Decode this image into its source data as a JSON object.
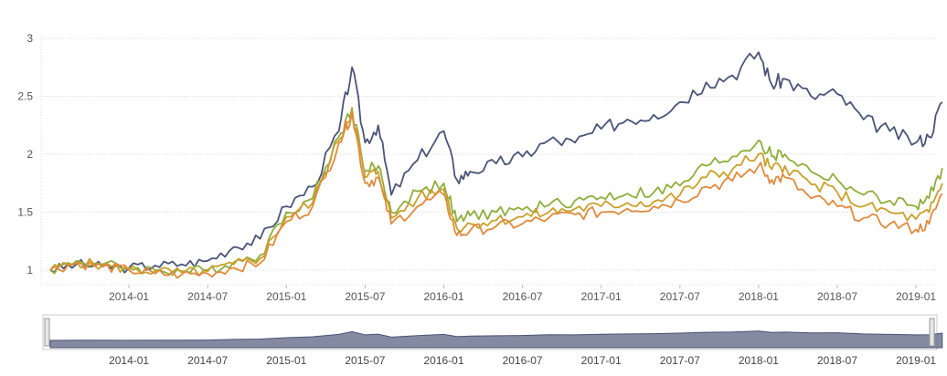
{
  "chart_data": {
    "type": "line",
    "title": "",
    "xlabel": "",
    "ylabel": "",
    "ylim": [
      0.9,
      3
    ],
    "yticks": [
      "1",
      "1.5",
      "2",
      "2.5",
      "3"
    ],
    "xticks": [
      "2014-01",
      "2014-07",
      "2015-01",
      "2015-07",
      "2016-01",
      "2016-07",
      "2017-01",
      "2017-07",
      "2018-01",
      "2018-07",
      "2019-01"
    ],
    "grid": true,
    "legend": "none",
    "x": [
      "2013-07",
      "2013-09",
      "2013-11",
      "2014-01",
      "2014-03",
      "2014-05",
      "2014-07",
      "2014-09",
      "2014-11",
      "2015-01",
      "2015-03",
      "2015-05",
      "2015-06",
      "2015-07",
      "2015-08",
      "2015-09",
      "2015-11",
      "2016-01",
      "2016-02",
      "2016-03",
      "2016-05",
      "2016-07",
      "2016-09",
      "2016-11",
      "2017-01",
      "2017-03",
      "2017-05",
      "2017-07",
      "2017-09",
      "2017-11",
      "2018-01",
      "2018-02",
      "2018-03",
      "2018-05",
      "2018-07",
      "2018-09",
      "2018-11",
      "2019-01",
      "2019-02",
      "2019-03"
    ],
    "series": [
      {
        "color": "#4a5478",
        "values": [
          1.0,
          1.05,
          1.03,
          1.02,
          1.04,
          1.05,
          1.08,
          1.2,
          1.27,
          1.55,
          1.72,
          2.2,
          2.75,
          2.1,
          2.25,
          1.65,
          1.95,
          2.2,
          1.78,
          1.85,
          1.92,
          1.98,
          2.12,
          2.1,
          2.22,
          2.3,
          2.34,
          2.45,
          2.62,
          2.68,
          2.88,
          2.6,
          2.65,
          2.5,
          2.52,
          2.3,
          2.2,
          2.1,
          2.15,
          2.45
        ]
      },
      {
        "color": "#8fad3c",
        "values": [
          1.0,
          1.08,
          1.05,
          1.02,
          1.0,
          0.99,
          1.0,
          1.07,
          1.13,
          1.5,
          1.62,
          2.15,
          2.4,
          1.85,
          1.9,
          1.5,
          1.68,
          1.75,
          1.42,
          1.47,
          1.5,
          1.52,
          1.56,
          1.6,
          1.63,
          1.66,
          1.67,
          1.73,
          1.9,
          1.98,
          2.12,
          1.98,
          2.0,
          1.85,
          1.78,
          1.65,
          1.6,
          1.55,
          1.62,
          1.88
        ]
      },
      {
        "color": "#c9a02b",
        "values": [
          1.0,
          1.07,
          1.04,
          1.01,
          0.99,
          0.98,
          0.99,
          1.05,
          1.1,
          1.46,
          1.58,
          2.12,
          2.38,
          1.8,
          1.85,
          1.45,
          1.62,
          1.7,
          1.36,
          1.4,
          1.43,
          1.46,
          1.5,
          1.53,
          1.55,
          1.58,
          1.59,
          1.65,
          1.8,
          1.87,
          2.0,
          1.87,
          1.9,
          1.74,
          1.67,
          1.55,
          1.5,
          1.44,
          1.5,
          1.75
        ]
      },
      {
        "color": "#e08a3c",
        "values": [
          1.0,
          1.06,
          1.03,
          1.0,
          0.97,
          0.96,
          0.97,
          1.02,
          1.06,
          1.42,
          1.55,
          2.1,
          2.36,
          1.75,
          1.8,
          1.4,
          1.55,
          1.65,
          1.3,
          1.34,
          1.38,
          1.4,
          1.45,
          1.48,
          1.5,
          1.53,
          1.55,
          1.6,
          1.72,
          1.77,
          1.9,
          1.78,
          1.8,
          1.62,
          1.55,
          1.45,
          1.4,
          1.35,
          1.4,
          1.66
        ]
      }
    ]
  },
  "navigator": {
    "xticks": [
      "2014-01",
      "2014-07",
      "2015-01",
      "2015-07",
      "2016-01",
      "2016-07",
      "2017-01",
      "2017-07",
      "2018-01",
      "2018-07",
      "2019-01"
    ]
  }
}
